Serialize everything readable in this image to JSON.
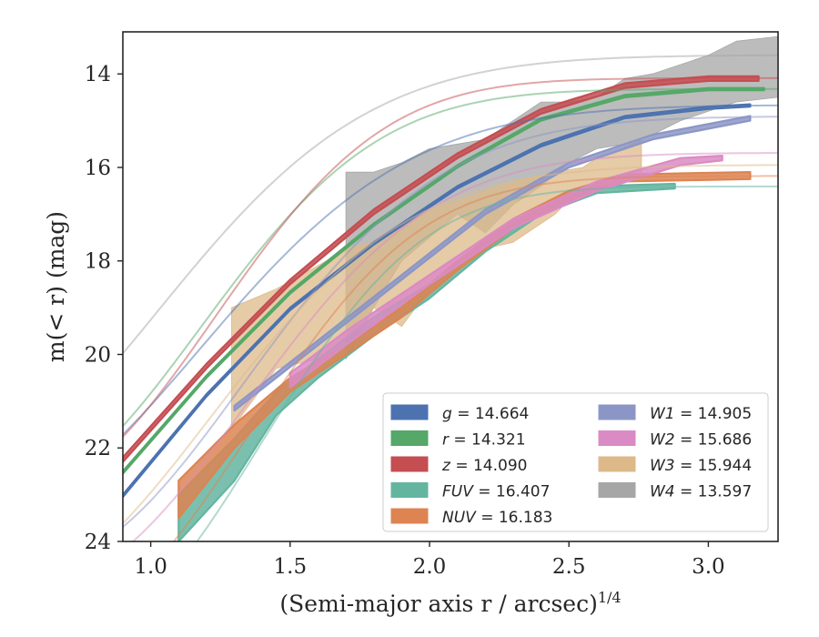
{
  "chart_data": {
    "type": "line",
    "xlabel": "(Semi-major axis r / arcsec)",
    "xlabel_sup": "1/4",
    "ylabel": "m(< r) (mag)",
    "xlim": [
      0.9,
      3.25
    ],
    "ylim": [
      24,
      13.1
    ],
    "y_inverted": true,
    "xticks": [
      1.0,
      1.5,
      2.0,
      2.5,
      3.0
    ],
    "xtick_labels": [
      "1.0",
      "1.5",
      "2.0",
      "2.5",
      "3.0"
    ],
    "yticks": [
      14,
      16,
      18,
      20,
      22,
      24
    ],
    "ytick_labels": [
      "14",
      "16",
      "18",
      "20",
      "22",
      "24"
    ],
    "legend_position": "lower-right",
    "series": [
      {
        "name": "g",
        "mag": "14.664",
        "color": "#4c72b0",
        "model": {
          "mtot": 14.664,
          "a": 8.4,
          "x0": 0.5,
          "p": 1.9
        },
        "band": [
          [
            0.9,
            23.05,
            23.0
          ],
          [
            1.2,
            20.9,
            20.85
          ],
          [
            1.5,
            19.05,
            19.0
          ],
          [
            1.8,
            17.65,
            17.6
          ],
          [
            2.1,
            16.45,
            16.4
          ],
          [
            2.4,
            15.55,
            15.5
          ],
          [
            2.7,
            14.95,
            14.9
          ],
          [
            3.0,
            14.75,
            14.7
          ],
          [
            3.15,
            14.7,
            14.65
          ]
        ]
      },
      {
        "name": "r",
        "mag": "14.321",
        "color": "#55a868",
        "model": {
          "mtot": 14.321,
          "a": 8.8,
          "x0": 0.42,
          "p": 2.2
        },
        "band": [
          [
            0.9,
            22.55,
            22.5
          ],
          [
            1.2,
            20.5,
            20.45
          ],
          [
            1.5,
            18.7,
            18.65
          ],
          [
            1.8,
            17.25,
            17.2
          ],
          [
            2.1,
            16.0,
            15.95
          ],
          [
            2.4,
            15.0,
            14.95
          ],
          [
            2.7,
            14.5,
            14.45
          ],
          [
            3.0,
            14.35,
            14.3
          ],
          [
            3.2,
            14.35,
            14.3
          ]
        ]
      },
      {
        "name": "z",
        "mag": "14.090",
        "color": "#c44e52",
        "model": {
          "mtot": 14.09,
          "a": 9.0,
          "x0": 0.45,
          "p": 2.3
        },
        "band": [
          [
            0.9,
            22.3,
            22.2
          ],
          [
            1.2,
            20.3,
            20.2
          ],
          [
            1.5,
            18.5,
            18.4
          ],
          [
            1.8,
            17.0,
            16.9
          ],
          [
            2.1,
            15.8,
            15.7
          ],
          [
            2.4,
            14.85,
            14.75
          ],
          [
            2.7,
            14.3,
            14.2
          ],
          [
            3.0,
            14.15,
            14.05
          ],
          [
            3.18,
            14.15,
            14.05
          ]
        ]
      },
      {
        "name": "FUV",
        "mag": "16.407",
        "color": "#64b5a0",
        "model": {
          "mtot": 16.407,
          "a": 9.8,
          "x0": 0.6,
          "p": 2.4
        },
        "band": [
          [
            1.1,
            24.0,
            23.0
          ],
          [
            1.3,
            22.7,
            21.8
          ],
          [
            1.45,
            21.3,
            20.8
          ],
          [
            1.6,
            20.5,
            20.1
          ],
          [
            1.8,
            19.6,
            19.2
          ],
          [
            2.0,
            18.8,
            18.5
          ],
          [
            2.2,
            17.8,
            17.6
          ],
          [
            2.4,
            17.0,
            16.8
          ],
          [
            2.6,
            16.55,
            16.4
          ],
          [
            2.88,
            16.45,
            16.35
          ]
        ]
      },
      {
        "name": "NUV",
        "mag": "16.183",
        "color": "#dd8452",
        "model": {
          "mtot": 16.183,
          "a": 9.6,
          "x0": 0.58,
          "p": 2.3
        },
        "band": [
          [
            1.1,
            23.5,
            22.7
          ],
          [
            1.3,
            22.0,
            21.5
          ],
          [
            1.5,
            20.8,
            20.5
          ],
          [
            1.7,
            20.0,
            19.8
          ],
          [
            1.9,
            19.2,
            19.0
          ],
          [
            2.1,
            18.2,
            18.0
          ],
          [
            2.3,
            17.3,
            17.1
          ],
          [
            2.5,
            16.7,
            16.5
          ],
          [
            2.7,
            16.3,
            16.15
          ],
          [
            3.15,
            16.25,
            16.1
          ]
        ]
      },
      {
        "name": "W1",
        "mag": "14.905",
        "color": "#8c96c6",
        "model": {
          "mtot": 14.905,
          "a": 9.5,
          "x0": 0.62,
          "p": 2.0
        },
        "band": [
          [
            1.3,
            21.2,
            21.1
          ],
          [
            1.6,
            19.8,
            19.7
          ],
          [
            1.9,
            18.4,
            18.3
          ],
          [
            2.2,
            17.0,
            16.9
          ],
          [
            2.5,
            16.0,
            15.9
          ],
          [
            2.8,
            15.4,
            15.3
          ],
          [
            3.15,
            15.0,
            14.9
          ]
        ]
      },
      {
        "name": "W2",
        "mag": "15.686",
        "color": "#da8bc3",
        "model": {
          "mtot": 15.686,
          "a": 9.2,
          "x0": 0.6,
          "p": 2.1
        },
        "band": [
          [
            1.5,
            20.7,
            20.4
          ],
          [
            1.7,
            19.8,
            19.5
          ],
          [
            2.0,
            18.5,
            18.3
          ],
          [
            2.3,
            17.3,
            17.1
          ],
          [
            2.6,
            16.5,
            16.3
          ],
          [
            2.9,
            15.95,
            15.8
          ],
          [
            3.05,
            15.85,
            15.75
          ]
        ]
      },
      {
        "name": "W3",
        "mag": "15.944",
        "color": "#ddb98a",
        "model": {
          "mtot": 15.944,
          "a": 9.0,
          "x0": 0.5,
          "p": 2.0
        },
        "band": [
          [
            1.29,
            21.6,
            19.0
          ],
          [
            1.45,
            20.3,
            18.6
          ],
          [
            1.6,
            20.1,
            18.1
          ],
          [
            1.72,
            19.6,
            17.7
          ],
          [
            1.8,
            19.0,
            17.6
          ],
          [
            1.9,
            19.4,
            17.3
          ],
          [
            2.0,
            18.6,
            16.9
          ],
          [
            2.15,
            17.8,
            16.6
          ],
          [
            2.3,
            17.6,
            16.3
          ],
          [
            2.45,
            17.0,
            16.1
          ],
          [
            2.55,
            16.4,
            16.0
          ],
          [
            2.6,
            16.5,
            15.8
          ],
          [
            2.65,
            16.2,
            15.7
          ],
          [
            2.76,
            16.2,
            15.4
          ]
        ]
      },
      {
        "name": "W4",
        "mag": "13.597",
        "color": "#a6a6a6",
        "model": {
          "mtot": 13.597,
          "a": 8.8,
          "x0": 0.35,
          "p": 1.9
        },
        "band": [
          [
            1.7,
            20.1,
            16.1
          ],
          [
            1.8,
            19.0,
            16.1
          ],
          [
            1.9,
            18.0,
            15.9
          ],
          [
            2.0,
            17.5,
            15.6
          ],
          [
            2.1,
            17.0,
            15.5
          ],
          [
            2.2,
            17.4,
            15.4
          ],
          [
            2.3,
            16.8,
            15.0
          ],
          [
            2.4,
            16.4,
            14.6
          ],
          [
            2.5,
            15.9,
            14.6
          ],
          [
            2.6,
            15.6,
            14.5
          ],
          [
            2.7,
            15.5,
            14.1
          ],
          [
            2.8,
            15.3,
            14.0
          ],
          [
            2.9,
            15.0,
            13.8
          ],
          [
            3.0,
            14.8,
            13.6
          ],
          [
            3.1,
            14.6,
            13.3
          ],
          [
            3.25,
            14.5,
            13.2
          ]
        ]
      }
    ]
  }
}
